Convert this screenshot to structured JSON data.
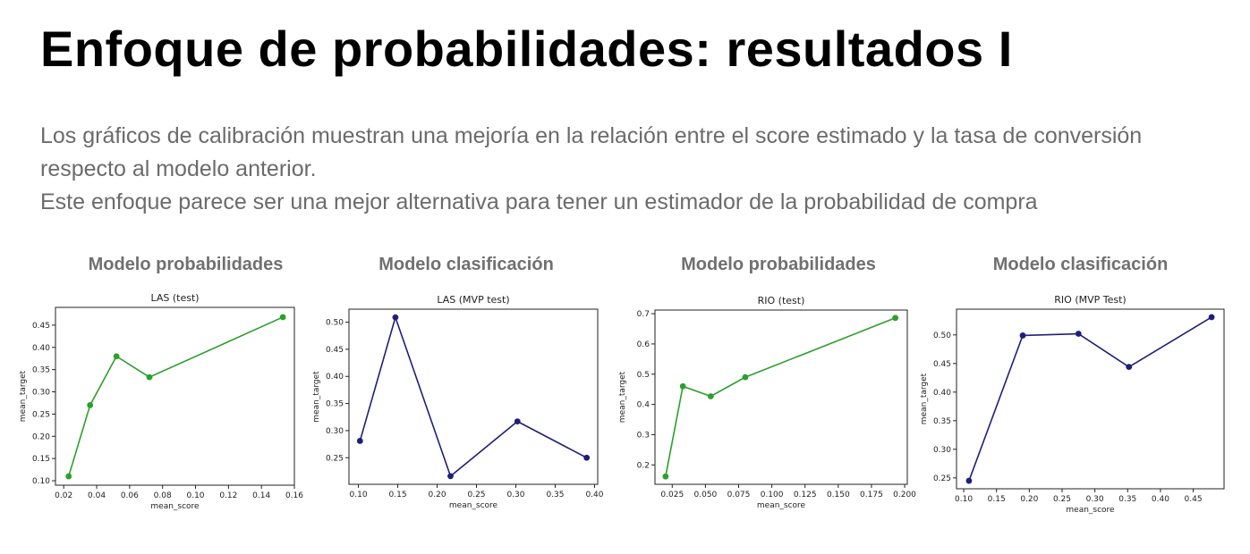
{
  "slide": {
    "title": "Enfoque de probabilidades: resultados I",
    "paragraphs": [
      "Los gráficos de calibración muestran una mejoría en la relación entre el score estimado y la tasa de conversión respecto al modelo anterior.",
      "Este enfoque parece ser una mejor alternativa para tener un estimador de la probabilidad de compra"
    ]
  },
  "panels": [
    {
      "heading": "Modelo probabilidades"
    },
    {
      "heading": "Modelo clasificación"
    },
    {
      "heading": "Modelo probabilidades"
    },
    {
      "heading": "Modelo clasificación"
    }
  ],
  "chart_data": [
    {
      "type": "line",
      "title": "LAS (test)",
      "xlabel": "mean_score",
      "ylabel": "mean_target",
      "color": "#2ca02c",
      "x": [
        0.023,
        0.036,
        0.052,
        0.072,
        0.153
      ],
      "y": [
        0.11,
        0.27,
        0.38,
        0.333,
        0.468
      ],
      "xlim": [
        0.015,
        0.16
      ],
      "ylim": [
        0.09,
        0.49
      ],
      "xticks": [
        0.02,
        0.04,
        0.06,
        0.08,
        0.1,
        0.12,
        0.14,
        0.16
      ],
      "xtick_labels": [
        "0.02",
        "0.04",
        "0.06",
        "0.08",
        "0.10",
        "0.12",
        "0.14",
        "0.16"
      ],
      "yticks": [
        0.1,
        0.15,
        0.2,
        0.25,
        0.3,
        0.35,
        0.4,
        0.45
      ],
      "ytick_labels": [
        "0.10",
        "0.15",
        "0.20",
        "0.25",
        "0.30",
        "0.35",
        "0.40",
        "0.45"
      ]
    },
    {
      "type": "line",
      "title": "LAS (MVP test)",
      "xlabel": "mean_score",
      "ylabel": "mean_target",
      "color": "#1f1f7a",
      "x": [
        0.102,
        0.147,
        0.217,
        0.302,
        0.39
      ],
      "y": [
        0.281,
        0.509,
        0.216,
        0.317,
        0.25
      ],
      "xlim": [
        0.088,
        0.404
      ],
      "ylim": [
        0.201,
        0.524
      ],
      "xticks": [
        0.1,
        0.15,
        0.2,
        0.25,
        0.3,
        0.35,
        0.4
      ],
      "xtick_labels": [
        "0.10",
        "0.15",
        "0.20",
        "0.25",
        "0.30",
        "0.35",
        "0.40"
      ],
      "yticks": [
        0.25,
        0.3,
        0.35,
        0.4,
        0.45,
        0.5
      ],
      "ytick_labels": [
        "0.25",
        "0.30",
        "0.35",
        "0.40",
        "0.45",
        "0.50"
      ]
    },
    {
      "type": "line",
      "title": "RIO (test)",
      "xlabel": "mean_score",
      "ylabel": "mean_target",
      "color": "#2ca02c",
      "x": [
        0.02,
        0.033,
        0.054,
        0.08,
        0.193
      ],
      "y": [
        0.162,
        0.46,
        0.427,
        0.49,
        0.686
      ],
      "xlim": [
        0.012,
        0.202
      ],
      "ylim": [
        0.136,
        0.712
      ],
      "xticks": [
        0.025,
        0.05,
        0.075,
        0.1,
        0.125,
        0.15,
        0.175,
        0.2
      ],
      "xtick_labels": [
        "0.025",
        "0.050",
        "0.075",
        "0.100",
        "0.125",
        "0.150",
        "0.175",
        "0.200"
      ],
      "yticks": [
        0.2,
        0.3,
        0.4,
        0.5,
        0.6,
        0.7
      ],
      "ytick_labels": [
        "0.2",
        "0.3",
        "0.4",
        "0.5",
        "0.6",
        "0.7"
      ]
    },
    {
      "type": "line",
      "title": "RIO (MVP Test)",
      "xlabel": "mean_score",
      "ylabel": "mean_target",
      "color": "#1f1f7a",
      "x": [
        0.108,
        0.19,
        0.275,
        0.352,
        0.478
      ],
      "y": [
        0.245,
        0.499,
        0.502,
        0.444,
        0.531
      ],
      "xlim": [
        0.089,
        0.497
      ],
      "ylim": [
        0.231,
        0.545
      ],
      "xticks": [
        0.1,
        0.15,
        0.2,
        0.25,
        0.3,
        0.35,
        0.4,
        0.45
      ],
      "xtick_labels": [
        "0.10",
        "0.15",
        "0.20",
        "0.25",
        "0.30",
        "0.35",
        "0.40",
        "0.45"
      ],
      "yticks": [
        0.25,
        0.3,
        0.35,
        0.4,
        0.45,
        0.5
      ],
      "ytick_labels": [
        "0.25",
        "0.30",
        "0.35",
        "0.40",
        "0.45",
        "0.50"
      ]
    }
  ]
}
